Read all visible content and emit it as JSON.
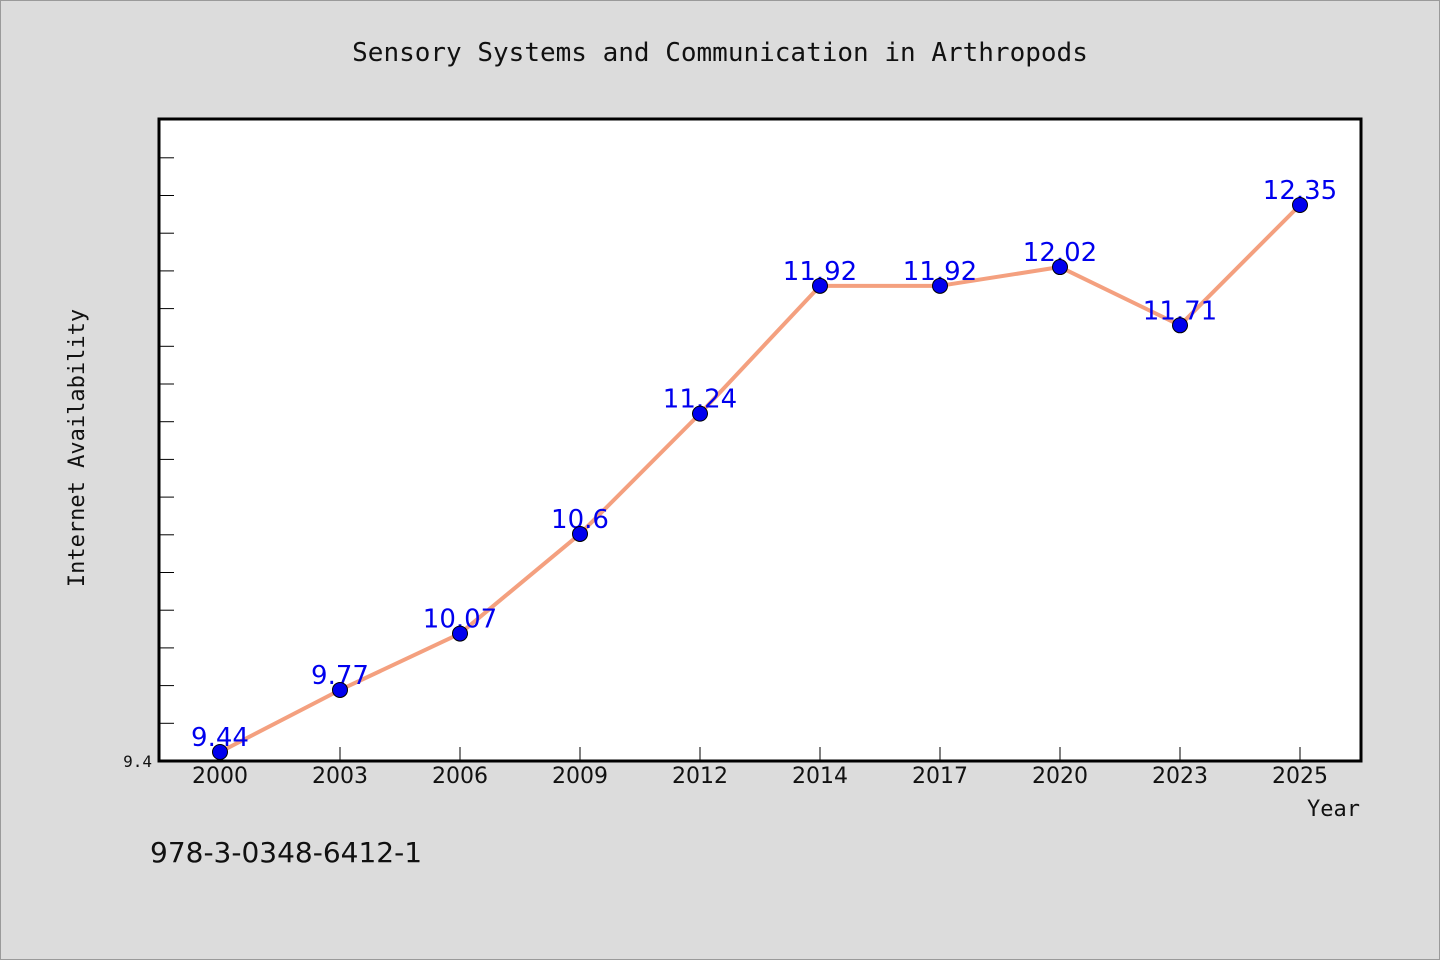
{
  "colors": {
    "background": "#dcdcdc",
    "plot_background": "#ffffff",
    "line": "#f4a07f",
    "marker": "#0000ee",
    "data_label": "#0000ee",
    "axis": "#000000"
  },
  "footer": {
    "isbn": "978-3-0348-6412-1"
  },
  "chart_data": {
    "type": "line",
    "title": "Sensory Systems and Communication in Arthropods",
    "xlabel": "Year",
    "ylabel": "Internet Availability",
    "categories": [
      "2000",
      "2003",
      "2006",
      "2009",
      "2012",
      "2014",
      "2017",
      "2020",
      "2023",
      "2025"
    ],
    "series": [
      {
        "values": [
          9.44,
          9.77,
          10.07,
          10.6,
          11.24,
          11.92,
          11.92,
          12.02,
          11.71,
          12.35
        ],
        "data_labels": [
          "9.44",
          "9.77",
          "10.07",
          "10.6",
          "11.24",
          "11.92",
          "11.92",
          "12.02",
          "11.71",
          "12.35"
        ]
      }
    ],
    "ylim": [
      9.4,
      12.8
    ],
    "ytick_labels": [
      "9.4"
    ],
    "grid": false,
    "legend": "none"
  }
}
